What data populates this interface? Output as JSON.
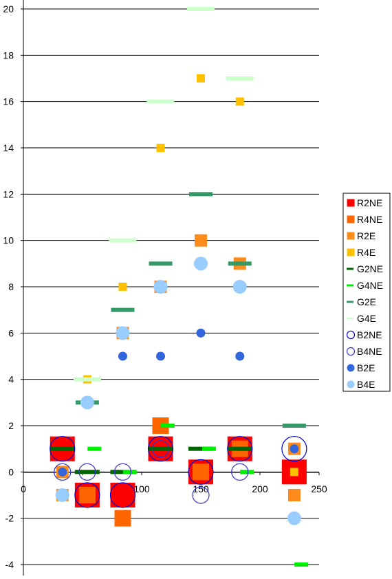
{
  "chart_data": {
    "type": "scatter",
    "title": "",
    "xlabel": "",
    "ylabel": "",
    "xlim": [
      0,
      250
    ],
    "ylim": [
      -4,
      20
    ],
    "x_ticks": [
      "0",
      "50",
      "100",
      "150",
      "200",
      "250"
    ],
    "y_ticks": [
      "-4",
      "-2",
      "0",
      "2",
      "4",
      "6",
      "8",
      "10",
      "12",
      "14",
      "16",
      "18",
      "20"
    ],
    "grid": "horizontal",
    "legend_position": "right",
    "series": [
      {
        "name": "R2NE",
        "marker": "square",
        "color": "#ff0000",
        "size": 36,
        "points": [
          [
            33,
            1
          ],
          [
            54,
            -1
          ],
          [
            84,
            -1
          ],
          [
            116,
            1
          ],
          [
            150,
            0
          ],
          [
            183,
            1
          ],
          [
            229,
            0
          ]
        ]
      },
      {
        "name": "R4NE",
        "marker": "square",
        "color": "#ff6600",
        "size": 24,
        "points": [
          [
            54,
            -1
          ],
          [
            84,
            -2
          ],
          [
            116,
            2
          ],
          [
            150,
            0
          ],
          [
            183,
            1
          ]
        ]
      },
      {
        "name": "R2E",
        "marker": "square",
        "color": "#ff8c1a",
        "size": 18,
        "points": [
          [
            33,
            -1
          ],
          [
            33,
            0
          ],
          [
            84,
            6
          ],
          [
            116,
            8
          ],
          [
            150,
            10
          ],
          [
            183,
            9
          ],
          [
            229,
            -1
          ],
          [
            229,
            1
          ]
        ]
      },
      {
        "name": "R4E",
        "marker": "square",
        "color": "#ffc000",
        "size": 12,
        "points": [
          [
            54,
            4
          ],
          [
            84,
            8
          ],
          [
            116,
            14
          ],
          [
            150,
            17
          ],
          [
            183,
            16
          ],
          [
            229,
            0
          ]
        ]
      },
      {
        "name": "G2NE",
        "marker": "dash",
        "color": "#006400",
        "size": 36,
        "points": [
          [
            33,
            1
          ],
          [
            54,
            0
          ],
          [
            84,
            0
          ],
          [
            116,
            1
          ],
          [
            150,
            1
          ],
          [
            183,
            1
          ]
        ]
      },
      {
        "name": "G4NE",
        "marker": "dash",
        "color": "#00ee00",
        "size": 20,
        "points": [
          [
            60,
            1
          ],
          [
            90,
            0
          ],
          [
            122,
            2
          ],
          [
            157,
            1
          ],
          [
            189,
            0
          ],
          [
            235,
            -4
          ]
        ]
      },
      {
        "name": "G2E",
        "marker": "dash",
        "color": "#339966",
        "size": 34,
        "points": [
          [
            54,
            3
          ],
          [
            84,
            7
          ],
          [
            116,
            9
          ],
          [
            150,
            12
          ],
          [
            183,
            9
          ],
          [
            229,
            2
          ]
        ]
      },
      {
        "name": "G4E",
        "marker": "dash",
        "color": "#ccffcc",
        "size": 40,
        "points": [
          [
            54,
            4
          ],
          [
            84,
            10
          ],
          [
            116,
            16
          ],
          [
            150,
            20
          ],
          [
            183,
            17
          ]
        ]
      },
      {
        "name": "B2NE",
        "marker": "ring",
        "color": "#0000cc",
        "size": 36,
        "points": [
          [
            33,
            1
          ],
          [
            54,
            -1
          ],
          [
            84,
            -1
          ],
          [
            116,
            1
          ],
          [
            150,
            0
          ],
          [
            183,
            1
          ],
          [
            229,
            1
          ]
        ]
      },
      {
        "name": "B4NE",
        "marker": "ring",
        "color": "#3333cc",
        "size": 24,
        "points": [
          [
            33,
            0
          ],
          [
            54,
            0
          ],
          [
            84,
            0
          ],
          [
            116,
            1
          ],
          [
            150,
            -1
          ],
          [
            183,
            0
          ]
        ]
      },
      {
        "name": "B2E",
        "marker": "dot",
        "color": "#3366dd",
        "size": 13,
        "points": [
          [
            33,
            0
          ],
          [
            84,
            5
          ],
          [
            116,
            5
          ],
          [
            150,
            6
          ],
          [
            183,
            5
          ],
          [
            229,
            1
          ]
        ]
      },
      {
        "name": "B4E",
        "marker": "dot",
        "color": "#99ccff",
        "size": 20,
        "points": [
          [
            33,
            -1
          ],
          [
            54,
            3
          ],
          [
            84,
            6
          ],
          [
            116,
            8
          ],
          [
            150,
            9
          ],
          [
            183,
            8
          ],
          [
            229,
            -2
          ]
        ]
      }
    ]
  }
}
